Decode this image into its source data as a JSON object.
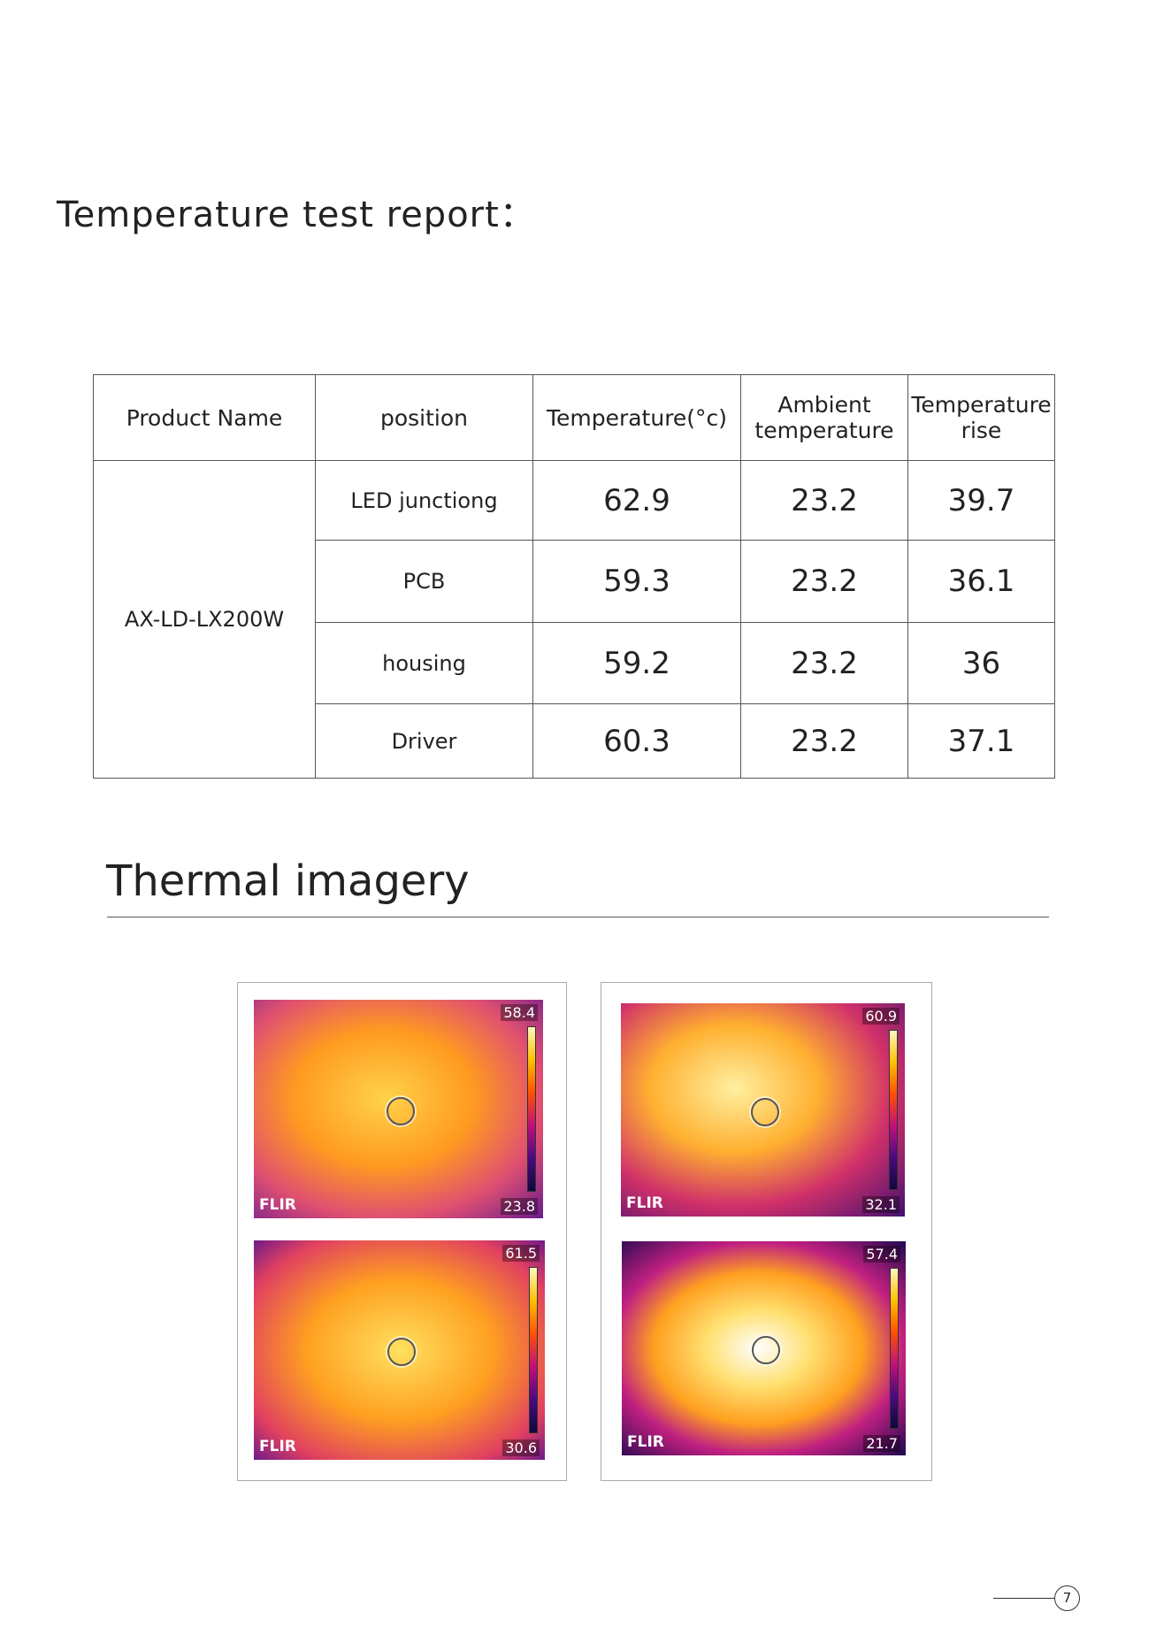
{
  "title": "Temperature test report：",
  "table": {
    "header": [
      "Product Name",
      "position",
      "Temperature(°c)",
      "Ambient temperature",
      "Temperature rise"
    ],
    "product": "AX-LD-LX200W",
    "rows": [
      [
        "LED junctiong",
        62.9,
        23.2,
        39.7
      ],
      [
        "PCB",
        59.3,
        23.2,
        36.1
      ],
      [
        "housing",
        59.2,
        23.2,
        36
      ],
      [
        "Driver",
        60.3,
        23.2,
        37.1
      ]
    ]
  },
  "section": "Thermal imagery",
  "images": [
    {
      "max": 58.4,
      "min": 23.8,
      "logo": "FLIR"
    },
    {
      "max": 60.9,
      "min": 32.1,
      "logo": "FLIR"
    },
    {
      "max": 61.5,
      "min": 30.6,
      "logo": "FLIR"
    },
    {
      "max": 57.4,
      "min": 21.7,
      "logo": "FLIR"
    }
  ],
  "page_number": "7"
}
